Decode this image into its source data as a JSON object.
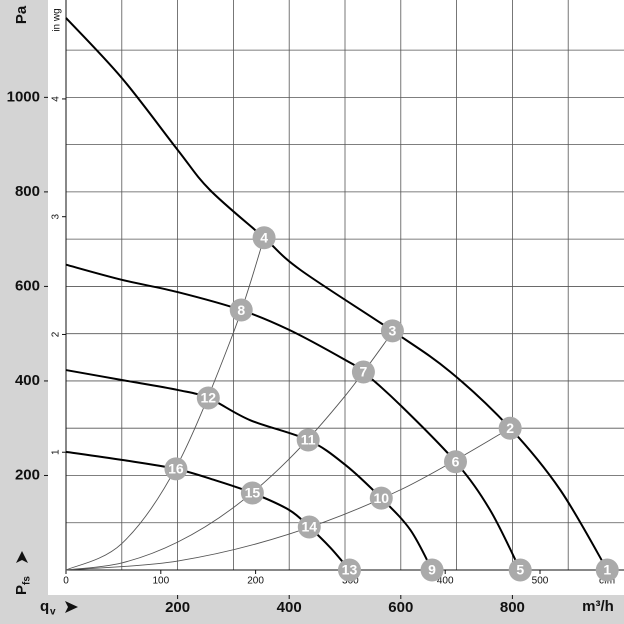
{
  "chart_data": {
    "type": "line",
    "y_label": "Pa",
    "y_label_main": "P",
    "y_label_sub": "fs",
    "y2_label": "in wg",
    "x_label_main": "q",
    "x_label_sub": "v",
    "x_label": "m³/h",
    "x2_label": "cfm",
    "xlim": [
      0,
      1000
    ],
    "ylim": [
      0,
      1206
    ],
    "x2lim": [
      0,
      588.6
    ],
    "y2lim": [
      0,
      4.84
    ],
    "xticks": [
      200,
      400,
      600,
      800
    ],
    "yticks": [
      200,
      400,
      600,
      800,
      1000
    ],
    "x2ticks": [
      0,
      100,
      200,
      300,
      400,
      500
    ],
    "y2ticks": [
      1,
      2,
      3,
      4
    ],
    "xgridlines": [
      100,
      200,
      300,
      400,
      500,
      600,
      700,
      800,
      900
    ],
    "ygridlines": [
      100,
      200,
      300,
      400,
      500,
      600,
      700,
      800,
      900,
      1000,
      1100
    ],
    "series": [
      {
        "color": "#000000",
        "x": [
          0,
          100,
          200,
          258,
          355,
          420,
          585,
          689,
          796,
          886,
          970
        ],
        "values": [
          1168,
          1041,
          889,
          804,
          703,
          635,
          506,
          419,
          300,
          169,
          0
        ]
      },
      {
        "color": "#000000",
        "x": [
          0,
          100,
          200,
          314,
          400,
          501,
          533,
          599,
          698,
          760,
          814
        ],
        "values": [
          646,
          614,
          588,
          550,
          508,
          444,
          419,
          349,
          229,
          127,
          0
        ]
      },
      {
        "color": "#000000",
        "x": [
          0,
          100,
          200,
          255,
          330,
          434,
          501,
          565,
          617,
          656
        ],
        "values": [
          423,
          402,
          381,
          364,
          317,
          275,
          222,
          152,
          85,
          0
        ]
      },
      {
        "color": "#000000",
        "x": [
          0,
          100,
          197,
          267,
          334,
          400,
          436,
          474,
          508
        ],
        "values": [
          250,
          233,
          214,
          190,
          163,
          127,
          91,
          47,
          0
        ]
      },
      {
        "color": "#555555",
        "thin": true,
        "x": [
          0,
          100,
          200,
          300,
          355
        ],
        "values": [
          0,
          56,
          223,
          502,
          703
        ]
      },
      {
        "color": "#555555",
        "thin": true,
        "x": [
          0,
          100,
          200,
          300,
          400,
          500,
          585
        ],
        "values": [
          0,
          15,
          59,
          132,
          235,
          368,
          503
        ]
      },
      {
        "color": "#555555",
        "thin": true,
        "x": [
          0,
          200,
          400,
          600,
          796
        ],
        "values": [
          0,
          19,
          76,
          170,
          300
        ]
      }
    ],
    "marker_color": "#aaaaaa",
    "points": [
      {
        "label": "1",
        "x": 970,
        "y": 0
      },
      {
        "label": "2",
        "x": 796,
        "y": 300
      },
      {
        "label": "3",
        "x": 585,
        "y": 506
      },
      {
        "label": "4",
        "x": 355,
        "y": 703
      },
      {
        "label": "5",
        "x": 814,
        "y": 0
      },
      {
        "label": "6",
        "x": 698,
        "y": 229
      },
      {
        "label": "7",
        "x": 533,
        "y": 419
      },
      {
        "label": "8",
        "x": 314,
        "y": 550
      },
      {
        "label": "9",
        "x": 656,
        "y": 0
      },
      {
        "label": "10",
        "x": 565,
        "y": 152
      },
      {
        "label": "11",
        "x": 434,
        "y": 275
      },
      {
        "label": "12",
        "x": 255,
        "y": 364
      },
      {
        "label": "13",
        "x": 508,
        "y": 0
      },
      {
        "label": "14",
        "x": 436,
        "y": 91
      },
      {
        "label": "15",
        "x": 334,
        "y": 163
      },
      {
        "label": "16",
        "x": 197,
        "y": 214
      }
    ]
  }
}
